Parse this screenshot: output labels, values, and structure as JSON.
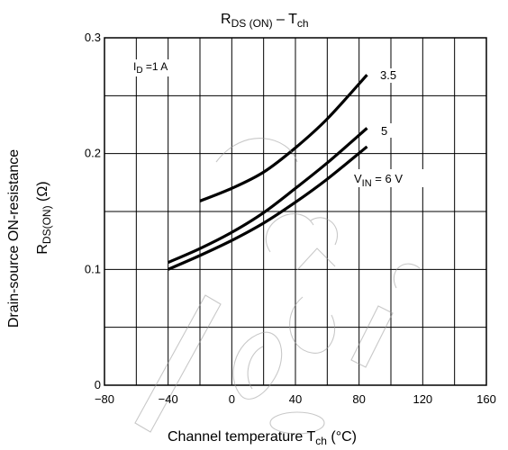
{
  "chart_data": {
    "type": "line",
    "title": {
      "main": "R",
      "sub": "DS (ON)",
      "mid": " – T",
      "sub2": "ch"
    },
    "xlabel": {
      "main": "Channel temperature   T",
      "sub": "ch",
      "tail": " (°C)"
    },
    "ylabel": {
      "line1": "Drain-source ON-resistance",
      "line2_main": "R",
      "line2_sub": "DS(ON)",
      "line2_tail": "   (Ω)"
    },
    "xlim": [
      -80,
      160
    ],
    "ylim": [
      0,
      0.3
    ],
    "x_ticks": [
      "−80",
      "−40",
      "0",
      "40",
      "80",
      "120",
      "160"
    ],
    "y_ticks": [
      "0",
      "0.1",
      "0.2",
      "0.3"
    ],
    "grid": true,
    "condition": {
      "main": "I",
      "sub": "D",
      "tail": " =1 A"
    },
    "series": [
      {
        "name": "3.5",
        "points": [
          [
            -20,
            0.159
          ],
          [
            0,
            0.17
          ],
          [
            20,
            0.184
          ],
          [
            40,
            0.205
          ],
          [
            60,
            0.23
          ],
          [
            85,
            0.268
          ]
        ]
      },
      {
        "name": "5",
        "points": [
          [
            -40,
            0.106
          ],
          [
            -20,
            0.118
          ],
          [
            0,
            0.132
          ],
          [
            20,
            0.149
          ],
          [
            40,
            0.17
          ],
          [
            60,
            0.192
          ],
          [
            85,
            0.222
          ]
        ]
      },
      {
        "name": "6",
        "label_parts": {
          "main": "V",
          "sub": "IN",
          "tail": " = 6 V"
        },
        "points": [
          [
            -40,
            0.1
          ],
          [
            -20,
            0.112
          ],
          [
            0,
            0.125
          ],
          [
            20,
            0.14
          ],
          [
            40,
            0.158
          ],
          [
            60,
            0.178
          ],
          [
            85,
            0.206
          ]
        ]
      }
    ]
  }
}
